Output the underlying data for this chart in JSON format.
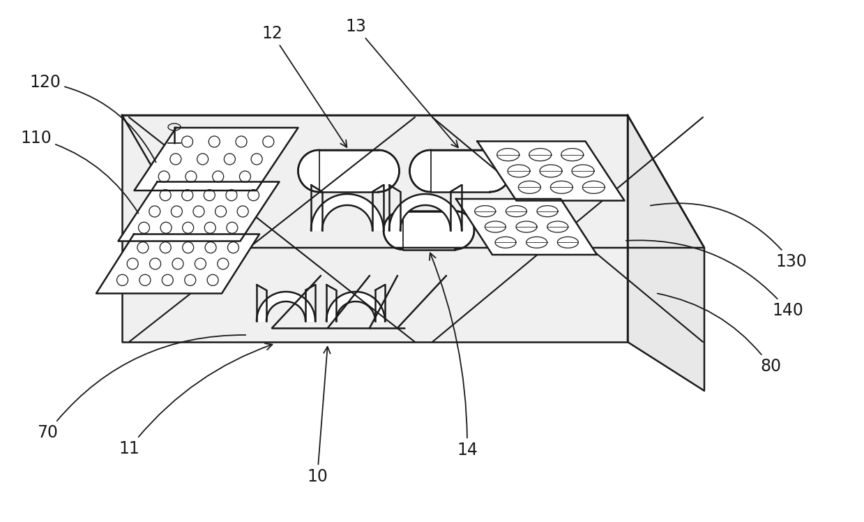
{
  "background_color": "#ffffff",
  "line_color": "#1a1a1a",
  "line_width": 1.8,
  "figsize": [
    12.39,
    7.48
  ],
  "dpi": 100,
  "label_fontsize": 17
}
